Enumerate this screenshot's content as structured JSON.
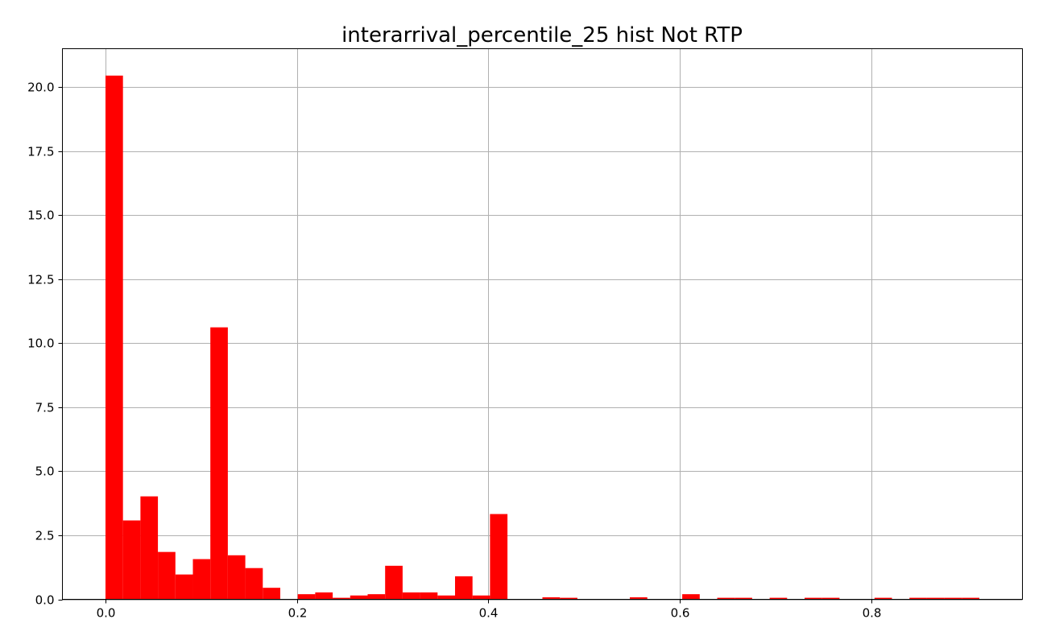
{
  "chart_data": {
    "type": "bar",
    "title": "interarrival_percentile_25 hist Not RTP",
    "xlabel": "",
    "ylabel": "",
    "xlim": [
      -0.045,
      0.958
    ],
    "ylim": [
      0,
      21.5
    ],
    "grid": true,
    "bar_color": "#ff0000",
    "bin_start": 0.0,
    "bin_width": 0.01826,
    "values": [
      20.45,
      3.08,
      4.02,
      1.85,
      0.97,
      1.57,
      10.62,
      1.72,
      1.22,
      0.45,
      0.0,
      0.2,
      0.27,
      0.06,
      0.15,
      0.2,
      1.31,
      0.27,
      0.27,
      0.15,
      0.9,
      0.15,
      3.33,
      0.0,
      0.0,
      0.08,
      0.06,
      0.0,
      0.0,
      0.0,
      0.08,
      0.0,
      0.0,
      0.2,
      0.0,
      0.06,
      0.06,
      0.0,
      0.06,
      0.0,
      0.06,
      0.06,
      0.0,
      0.0,
      0.06,
      0.0,
      0.06,
      0.06,
      0.06,
      0.06
    ],
    "x_ticks": [
      {
        "value": 0.0,
        "label": "0.0"
      },
      {
        "value": 0.2,
        "label": "0.2"
      },
      {
        "value": 0.4,
        "label": "0.4"
      },
      {
        "value": 0.6,
        "label": "0.6"
      },
      {
        "value": 0.8,
        "label": "0.8"
      }
    ],
    "y_ticks": [
      {
        "value": 0.0,
        "label": "0.0"
      },
      {
        "value": 2.5,
        "label": "2.5"
      },
      {
        "value": 5.0,
        "label": "5.0"
      },
      {
        "value": 7.5,
        "label": "7.5"
      },
      {
        "value": 10.0,
        "label": "10.0"
      },
      {
        "value": 12.5,
        "label": "12.5"
      },
      {
        "value": 15.0,
        "label": "15.0"
      },
      {
        "value": 17.5,
        "label": "17.5"
      },
      {
        "value": 20.0,
        "label": "20.0"
      }
    ]
  }
}
